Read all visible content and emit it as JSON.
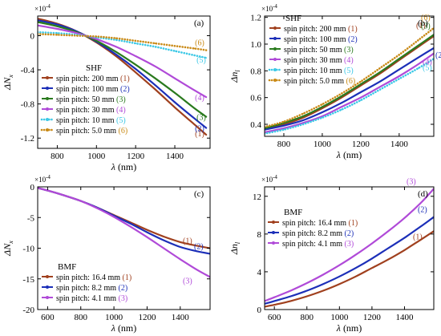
{
  "chart_data": [
    {
      "id": "a",
      "type": "line",
      "panel_label": "(a)",
      "xlabel": "λ (nm)",
      "ylabel": "ΔN",
      "ylabel_sub": "x",
      "exponent": "×10",
      "exponent_power": "-4",
      "xlim": [
        700,
        1580
      ],
      "ylim": [
        -1.32,
        0.23
      ],
      "xticks": [
        800,
        1000,
        1200,
        1400
      ],
      "yticks": [
        0,
        -0.4,
        -0.8,
        -1.2
      ],
      "ytick_labels": [
        "0",
        "-0.4",
        "-0.8",
        "-1.2"
      ],
      "legend_title": "SHF",
      "legend_position": "lower-left",
      "series": [
        {
          "name": "spin pitch: 200 mm",
          "tag": "(1)",
          "color": "#a0401e",
          "style": "solid",
          "x": [
            700,
            800,
            900,
            1000,
            1100,
            1200,
            1300,
            1400,
            1500,
            1560
          ],
          "y": [
            0.2,
            0.14,
            0.05,
            -0.08,
            -0.24,
            -0.43,
            -0.63,
            -0.84,
            -1.04,
            -1.16
          ]
        },
        {
          "name": "spin pitch: 100 mm",
          "tag": "(2)",
          "color": "#1c2fb8",
          "style": "solid",
          "x": [
            700,
            800,
            900,
            1000,
            1100,
            1200,
            1300,
            1400,
            1500,
            1560
          ],
          "y": [
            0.18,
            0.13,
            0.05,
            -0.07,
            -0.22,
            -0.39,
            -0.58,
            -0.78,
            -0.97,
            -1.08
          ]
        },
        {
          "name": "spin pitch: 50 mm",
          "tag": "(3)",
          "color": "#2a7a1e",
          "style": "solid",
          "x": [
            700,
            800,
            900,
            1000,
            1100,
            1200,
            1300,
            1400,
            1500,
            1560
          ],
          "y": [
            0.16,
            0.11,
            0.04,
            -0.06,
            -0.19,
            -0.34,
            -0.5,
            -0.67,
            -0.85,
            -0.95
          ]
        },
        {
          "name": "spin pitch: 30 mm",
          "tag": "(4)",
          "color": "#b04ad8",
          "style": "solid",
          "x": [
            700,
            800,
            900,
            1000,
            1100,
            1200,
            1300,
            1400,
            1500,
            1560
          ],
          "y": [
            0.12,
            0.08,
            0.03,
            -0.04,
            -0.13,
            -0.24,
            -0.36,
            -0.5,
            -0.64,
            -0.72
          ]
        },
        {
          "name": "spin pitch: 10 mm",
          "tag": "(5)",
          "color": "#3cc8e6",
          "style": "dotted",
          "x": [
            700,
            800,
            900,
            1000,
            1100,
            1200,
            1300,
            1400,
            1500,
            1560
          ],
          "y": [
            0.04,
            0.03,
            0.01,
            -0.02,
            -0.05,
            -0.09,
            -0.13,
            -0.18,
            -0.23,
            -0.26
          ]
        },
        {
          "name": "spin pitch: 5.0 mm",
          "tag": "(6)",
          "color": "#c98a16",
          "style": "dotted",
          "x": [
            700,
            800,
            900,
            1000,
            1100,
            1200,
            1300,
            1400,
            1500,
            1560
          ],
          "y": [
            0.02,
            0.01,
            0.0,
            -0.01,
            -0.03,
            -0.06,
            -0.09,
            -0.12,
            -0.15,
            -0.17
          ]
        }
      ]
    },
    {
      "id": "b",
      "type": "line",
      "panel_label": "(b)",
      "xlabel": "λ (nm)",
      "ylabel": "Δn",
      "ylabel_sub": "l",
      "exponent": "×10",
      "exponent_power": "-4",
      "xlim": [
        700,
        1580
      ],
      "ylim": [
        0.31,
        1.21
      ],
      "xticks": [
        800,
        1000,
        1200,
        1400
      ],
      "yticks": [
        0.4,
        0.6,
        0.8,
        1.0,
        1.2
      ],
      "ytick_labels": [
        "0.4",
        "0.6",
        "0.8",
        "1.0",
        "1.2"
      ],
      "legend_title": "SHF",
      "legend_position": "top-left",
      "series": [
        {
          "name": "spin pitch: 200 mm",
          "tag": "(1)",
          "color": "#a0401e",
          "style": "solid",
          "x": [
            700,
            800,
            900,
            1000,
            1100,
            1200,
            1300,
            1400,
            1500,
            1580
          ],
          "y": [
            0.37,
            0.4,
            0.45,
            0.52,
            0.6,
            0.69,
            0.78,
            0.88,
            0.98,
            1.06
          ]
        },
        {
          "name": "spin pitch: 100 mm",
          "tag": "(2)",
          "color": "#1c2fb8",
          "style": "solid",
          "x": [
            700,
            800,
            900,
            1000,
            1100,
            1200,
            1300,
            1400,
            1500,
            1580
          ],
          "y": [
            0.36,
            0.39,
            0.43,
            0.49,
            0.56,
            0.64,
            0.72,
            0.81,
            0.9,
            0.97
          ]
        },
        {
          "name": "spin pitch: 50 mm",
          "tag": "(3)",
          "color": "#2a7a1e",
          "style": "solid",
          "x": [
            700,
            800,
            900,
            1000,
            1100,
            1200,
            1300,
            1400,
            1500,
            1580
          ],
          "y": [
            0.37,
            0.41,
            0.46,
            0.53,
            0.61,
            0.7,
            0.79,
            0.89,
            0.99,
            1.07
          ]
        },
        {
          "name": "spin pitch: 30 mm",
          "tag": "(4)",
          "color": "#b04ad8",
          "style": "solid",
          "x": [
            700,
            800,
            900,
            1000,
            1100,
            1200,
            1300,
            1400,
            1500,
            1580
          ],
          "y": [
            0.34,
            0.37,
            0.41,
            0.46,
            0.53,
            0.6,
            0.68,
            0.76,
            0.85,
            0.93
          ]
        },
        {
          "name": "spin pitch: 10 mm",
          "tag": "(5)",
          "color": "#3cc8e6",
          "style": "dotted",
          "x": [
            700,
            800,
            900,
            1000,
            1100,
            1200,
            1300,
            1400,
            1500,
            1580
          ],
          "y": [
            0.33,
            0.36,
            0.4,
            0.45,
            0.51,
            0.58,
            0.66,
            0.74,
            0.82,
            0.89
          ]
        },
        {
          "name": "spin pitch: 5.0 mm",
          "tag": "(6)",
          "color": "#c98a16",
          "style": "dotted",
          "x": [
            700,
            800,
            900,
            1000,
            1100,
            1200,
            1300,
            1400,
            1500,
            1580
          ],
          "y": [
            0.38,
            0.42,
            0.48,
            0.55,
            0.63,
            0.72,
            0.82,
            0.92,
            1.03,
            1.12
          ]
        }
      ]
    },
    {
      "id": "c",
      "type": "line",
      "panel_label": "(c)",
      "xlabel": "λ (nm)",
      "ylabel": "ΔN",
      "ylabel_sub": "x",
      "exponent": "×10",
      "exponent_power": "-4",
      "xlim": [
        540,
        1580
      ],
      "ylim": [
        -20,
        0
      ],
      "xticks": [
        600,
        800,
        1000,
        1200,
        1400
      ],
      "yticks": [
        0,
        -5,
        -10,
        -15,
        -20
      ],
      "ytick_labels": [
        "0",
        "-5",
        "-10",
        "-15",
        "-20"
      ],
      "legend_title": "BMF",
      "legend_position": "lower-left",
      "series": [
        {
          "name": "spin pitch: 16.4 mm",
          "tag": "(1)",
          "color": "#a0401e",
          "style": "solid",
          "x": [
            540,
            600,
            700,
            800,
            900,
            1000,
            1100,
            1200,
            1300,
            1400,
            1500,
            1580
          ],
          "y": [
            -0.2,
            -0.6,
            -1.4,
            -2.3,
            -3.4,
            -4.6,
            -5.8,
            -7.0,
            -8.1,
            -9.0,
            -9.6,
            -10.0
          ]
        },
        {
          "name": "spin pitch: 8.2 mm",
          "tag": "(2)",
          "color": "#1c2fb8",
          "style": "solid",
          "x": [
            540,
            600,
            700,
            800,
            900,
            1000,
            1100,
            1200,
            1300,
            1400,
            1500,
            1580
          ],
          "y": [
            -0.2,
            -0.6,
            -1.4,
            -2.3,
            -3.4,
            -4.7,
            -6.0,
            -7.4,
            -8.7,
            -9.8,
            -10.5,
            -10.9
          ]
        },
        {
          "name": "spin pitch: 4.1 mm",
          "tag": "(3)",
          "color": "#b04ad8",
          "style": "solid",
          "x": [
            540,
            600,
            700,
            800,
            900,
            1000,
            1100,
            1200,
            1300,
            1400,
            1500,
            1580
          ],
          "y": [
            -0.2,
            -0.6,
            -1.4,
            -2.3,
            -3.5,
            -4.9,
            -6.5,
            -8.2,
            -10.0,
            -11.8,
            -13.5,
            -14.7
          ]
        }
      ]
    },
    {
      "id": "d",
      "type": "line",
      "panel_label": "(d)",
      "xlabel": "λ (nm)",
      "ylabel": "Δn",
      "ylabel_sub": "l",
      "exponent": "×10",
      "exponent_power": "-4",
      "xlim": [
        540,
        1580
      ],
      "ylim": [
        0,
        13
      ],
      "xticks": [
        600,
        800,
        1000,
        1200,
        1400
      ],
      "yticks": [
        0,
        4,
        8,
        12
      ],
      "ytick_labels": [
        "0",
        "4",
        "8",
        "12"
      ],
      "legend_title": "BMF",
      "legend_position": "top-left",
      "series": [
        {
          "name": "spin pitch: 16.4 mm",
          "tag": "(1)",
          "color": "#a0401e",
          "style": "solid",
          "x": [
            540,
            600,
            700,
            800,
            900,
            1000,
            1100,
            1200,
            1300,
            1400,
            1500,
            1580
          ],
          "y": [
            0.3,
            0.5,
            0.9,
            1.4,
            2.0,
            2.7,
            3.5,
            4.4,
            5.3,
            6.3,
            7.4,
            8.3
          ]
        },
        {
          "name": "spin pitch: 8.2 mm",
          "tag": "(2)",
          "color": "#1c2fb8",
          "style": "solid",
          "x": [
            540,
            600,
            700,
            800,
            900,
            1000,
            1100,
            1200,
            1300,
            1400,
            1500,
            1580
          ],
          "y": [
            0.6,
            0.9,
            1.4,
            2.0,
            2.7,
            3.5,
            4.4,
            5.4,
            6.5,
            7.6,
            8.8,
            9.8
          ]
        },
        {
          "name": "spin pitch: 4.1 mm",
          "tag": "(3)",
          "color": "#b04ad8",
          "style": "solid",
          "x": [
            540,
            600,
            700,
            800,
            900,
            1000,
            1100,
            1200,
            1300,
            1400,
            1500,
            1580
          ],
          "y": [
            0.9,
            1.3,
            2.0,
            2.8,
            3.7,
            4.7,
            5.8,
            7.0,
            8.3,
            9.7,
            11.3,
            12.8
          ]
        }
      ]
    }
  ]
}
